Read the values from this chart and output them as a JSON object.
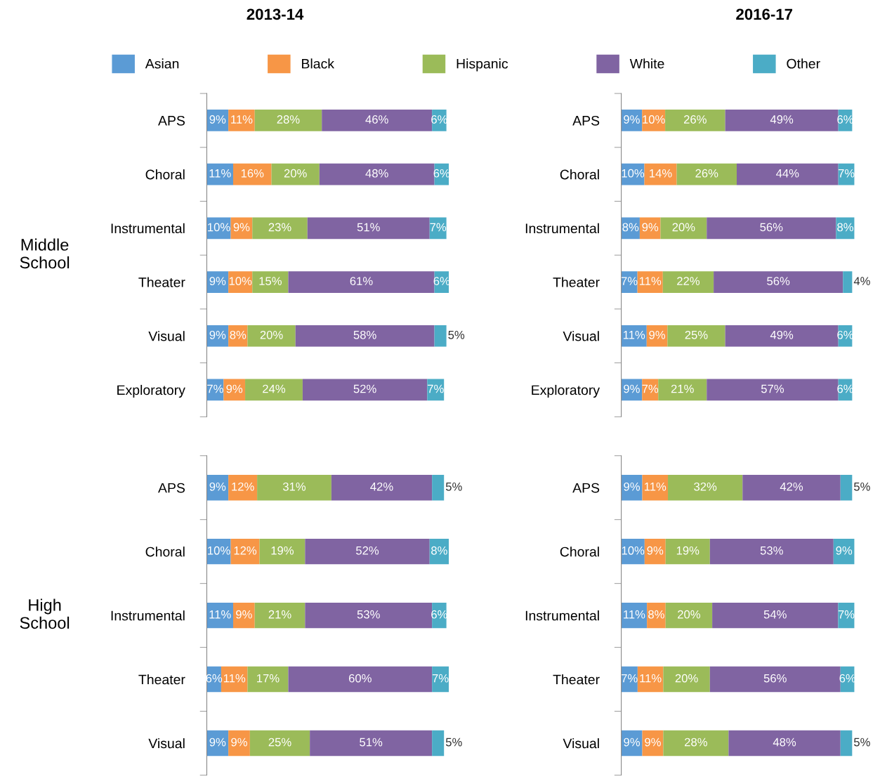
{
  "chart_data": [
    {
      "type": "bar",
      "orientation": "horizontal",
      "stacked": true,
      "title": "2013-14",
      "ylabel": "Middle\nSchool",
      "legend": "top",
      "categories": [
        "APS",
        "Choral",
        "Instrumental",
        "Theater",
        "Visual",
        "Exploratory"
      ],
      "series": [
        {
          "name": "Asian",
          "color": "#5b9bd5",
          "values": [
            9,
            11,
            10,
            9,
            9,
            7
          ],
          "value_labels": [
            "9%",
            "11%",
            "10%",
            "9%",
            "9%",
            "7%"
          ]
        },
        {
          "name": "Black",
          "color": "#f79646",
          "values": [
            11,
            16,
            9,
            10,
            8,
            9
          ],
          "value_labels": [
            "11%",
            "16%",
            "9%",
            "10%",
            "8%",
            "9%"
          ]
        },
        {
          "name": "Hispanic",
          "color": "#9bbb59",
          "values": [
            28,
            20,
            23,
            15,
            20,
            24
          ],
          "value_labels": [
            "28%",
            "20%",
            "23%",
            "15%",
            "20%",
            "24%"
          ]
        },
        {
          "name": "White",
          "color": "#8064a2",
          "values": [
            46,
            48,
            51,
            61,
            58,
            52
          ],
          "value_labels": [
            "46%",
            "48%",
            "51%",
            "61%",
            "58%",
            "52%"
          ]
        },
        {
          "name": "Other",
          "color": "#4bacc6",
          "values": [
            6,
            6,
            7,
            6,
            5,
            7
          ],
          "value_labels": [
            "6%",
            "6%",
            "7%",
            "6%",
            "5%",
            "7%"
          ]
        }
      ]
    },
    {
      "type": "bar",
      "orientation": "horizontal",
      "stacked": true,
      "title": "2016-17",
      "categories": [
        "APS",
        "Choral",
        "Instrumental",
        "Theater",
        "Visual",
        "Exploratory"
      ],
      "series": [
        {
          "color": "#5b9bd5",
          "values": [
            9,
            10,
            8,
            7,
            11,
            9
          ],
          "value_labels": [
            "9%",
            "10%",
            "8%",
            "7%",
            "11%",
            "9%"
          ]
        },
        {
          "color": "#f79646",
          "values": [
            10,
            14,
            9,
            11,
            9,
            7
          ],
          "value_labels": [
            "10%",
            "14%",
            "9%",
            "11%",
            "9%",
            "7%"
          ]
        },
        {
          "color": "#9bbb59",
          "values": [
            26,
            26,
            20,
            22,
            25,
            21
          ],
          "value_labels": [
            "26%",
            "26%",
            "20%",
            "22%",
            "25%",
            "21%"
          ]
        },
        {
          "color": "#8064a2",
          "values": [
            49,
            44,
            56,
            56,
            49,
            57
          ],
          "value_labels": [
            "49%",
            "44%",
            "56%",
            "56%",
            "49%",
            "57%"
          ]
        },
        {
          "color": "#4bacc6",
          "values": [
            6,
            7,
            8,
            4,
            6,
            6
          ],
          "value_labels": [
            "6%",
            "7%",
            "8%",
            "4%",
            "6%",
            "6%"
          ]
        }
      ]
    },
    {
      "type": "bar",
      "orientation": "horizontal",
      "stacked": true,
      "ylabel": "High\nSchool",
      "categories": [
        "APS",
        "Choral",
        "Instrumental",
        "Theater",
        "Visual"
      ],
      "series": [
        {
          "color": "#5b9bd5",
          "values": [
            9,
            10,
            11,
            6,
            9
          ],
          "value_labels": [
            "9%",
            "10%",
            "11%",
            "6%",
            "9%"
          ]
        },
        {
          "color": "#f79646",
          "values": [
            12,
            12,
            9,
            11,
            9
          ],
          "value_labels": [
            "12%",
            "12%",
            "9%",
            "11%",
            "9%"
          ]
        },
        {
          "color": "#9bbb59",
          "values": [
            31,
            19,
            21,
            17,
            25
          ],
          "value_labels": [
            "31%",
            "19%",
            "21%",
            "17%",
            "25%"
          ]
        },
        {
          "color": "#8064a2",
          "values": [
            42,
            52,
            53,
            60,
            51
          ],
          "value_labels": [
            "42%",
            "52%",
            "53%",
            "60%",
            "51%"
          ]
        },
        {
          "color": "#4bacc6",
          "values": [
            5,
            8,
            6,
            7,
            5
          ],
          "value_labels": [
            "5%",
            "8%",
            "6%",
            "7%",
            "5%"
          ]
        }
      ]
    },
    {
      "type": "bar",
      "orientation": "horizontal",
      "stacked": true,
      "categories": [
        "APS",
        "Choral",
        "Instrumental",
        "Theater",
        "Visual"
      ],
      "series": [
        {
          "color": "#5b9bd5",
          "values": [
            9,
            10,
            11,
            7,
            9
          ],
          "value_labels": [
            "9%",
            "10%",
            "11%",
            "7%",
            "9%"
          ]
        },
        {
          "color": "#f79646",
          "values": [
            11,
            9,
            8,
            11,
            9
          ],
          "value_labels": [
            "11%",
            "9%",
            "8%",
            "11%",
            "9%"
          ]
        },
        {
          "color": "#9bbb59",
          "values": [
            32,
            19,
            20,
            20,
            28
          ],
          "value_labels": [
            "32%",
            "19%",
            "20%",
            "20%",
            "28%"
          ]
        },
        {
          "color": "#8064a2",
          "values": [
            42,
            53,
            54,
            56,
            48
          ],
          "value_labels": [
            "42%",
            "53%",
            "54%",
            "56%",
            "48%"
          ]
        },
        {
          "color": "#4bacc6",
          "values": [
            5,
            9,
            7,
            6,
            5
          ],
          "value_labels": [
            "5%",
            "9%",
            "7%",
            "6%",
            "5%"
          ]
        }
      ]
    }
  ]
}
